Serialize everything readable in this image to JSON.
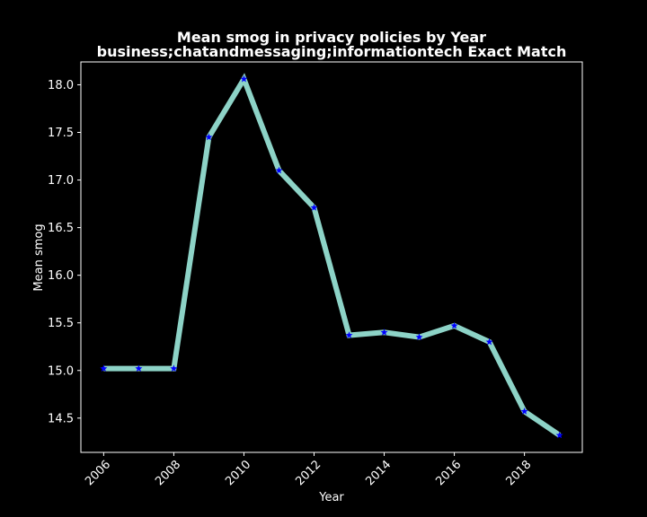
{
  "chart_data": {
    "type": "line",
    "title": "Mean smog in privacy policies by Year",
    "subtitle": "business;chatandmessaging;informationtech Exact Match",
    "xlabel": "Year",
    "ylabel": "Mean smog",
    "x": [
      2006,
      2007,
      2008,
      2009,
      2010,
      2011,
      2012,
      2013,
      2014,
      2015,
      2016,
      2017,
      2018,
      2019
    ],
    "series": [
      {
        "values": [
          15.02,
          15.02,
          15.02,
          17.45,
          18.06,
          17.1,
          16.71,
          15.37,
          15.4,
          15.35,
          15.47,
          15.3,
          14.57,
          14.32
        ]
      }
    ],
    "xlim": [
      2005.35,
      2019.65
    ],
    "ylim": [
      14.14,
      18.24
    ],
    "xticks": [
      2006,
      2008,
      2010,
      2012,
      2014,
      2016,
      2018
    ],
    "yticks": [
      "14.5",
      "15.0",
      "15.5",
      "16.0",
      "16.5",
      "17.0",
      "17.5",
      "18.0"
    ],
    "grid": false,
    "legend": "none",
    "colors": {
      "background": "#000000",
      "line": "#8dd3c7",
      "marker": "#0000ff",
      "axes": "#ffffff",
      "text": "#ffffff"
    },
    "marker_shape": "star-icon"
  }
}
